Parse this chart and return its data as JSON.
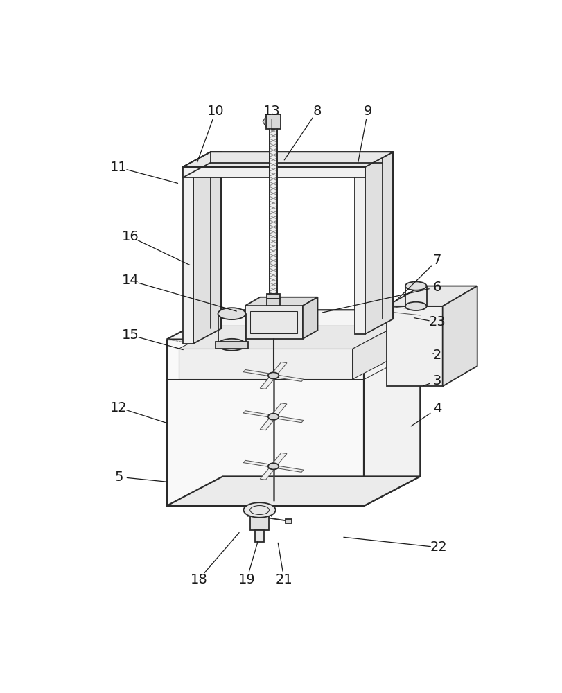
{
  "bg_color": "#ffffff",
  "line_color": "#2a2a2a",
  "lw": 1.3,
  "lw_thin": 0.75,
  "lw_thick": 1.6,
  "figsize": [
    8.12,
    10.0
  ],
  "dpi": 100,
  "label_fontsize": 14,
  "label_color": "#1a1a1a",
  "labels_info": [
    [
      "10",
      270,
      52,
      232,
      157
    ],
    [
      "13",
      375,
      52,
      375,
      102
    ],
    [
      "8",
      460,
      52,
      393,
      152
    ],
    [
      "9",
      555,
      52,
      535,
      157
    ],
    [
      "11",
      88,
      158,
      208,
      190
    ],
    [
      "16",
      110,
      288,
      230,
      345
    ],
    [
      "14",
      110,
      370,
      318,
      430
    ],
    [
      "7",
      685,
      332,
      600,
      415
    ],
    [
      "6",
      685,
      382,
      460,
      432
    ],
    [
      "23",
      685,
      448,
      632,
      438
    ],
    [
      "2",
      685,
      510,
      672,
      505
    ],
    [
      "3",
      685,
      558,
      650,
      570
    ],
    [
      "4",
      685,
      610,
      628,
      648
    ],
    [
      "15",
      110,
      472,
      218,
      502
    ],
    [
      "12",
      88,
      608,
      188,
      640
    ],
    [
      "5",
      88,
      738,
      188,
      748
    ],
    [
      "18",
      238,
      930,
      320,
      835
    ],
    [
      "19",
      328,
      930,
      352,
      848
    ],
    [
      "21",
      398,
      930,
      385,
      852
    ],
    [
      "22",
      688,
      870,
      500,
      850
    ]
  ]
}
